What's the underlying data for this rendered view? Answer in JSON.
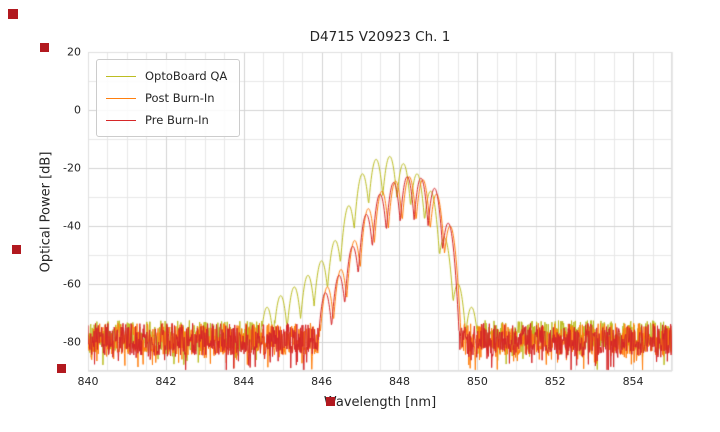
{
  "chart_data": {
    "type": "line",
    "title": "D4715 V20923 Ch. 1",
    "xlabel": "Wavelength [nm]",
    "ylabel": "Optical Power [dB]",
    "xlim": [
      840,
      855
    ],
    "ylim": [
      -90,
      20
    ],
    "xticks": [
      840,
      842,
      844,
      846,
      848,
      850,
      852,
      854
    ],
    "yticks": [
      20,
      0,
      -20,
      -40,
      -60,
      -80
    ],
    "x_minor_step": 0.5,
    "y_minor_step": 10,
    "grid": true,
    "legend_position": "upper left",
    "legend": [
      "OptoBoard QA",
      "Post Burn-In",
      "Pre Burn-In"
    ],
    "series": [
      {
        "name": "OptoBoard QA",
        "color": "#bcbd22",
        "seed": 101,
        "noise_floor": -78,
        "noise_amp": 5.5,
        "spike_prob": 0.18,
        "spike_depth": 7,
        "mode_spacing": 0.36,
        "valley_depth": 55,
        "modes": [
          [
            844.6,
            -68
          ],
          [
            844.95,
            -64
          ],
          [
            845.3,
            -61
          ],
          [
            845.65,
            -57
          ],
          [
            846.0,
            -52
          ],
          [
            846.35,
            -45
          ],
          [
            846.7,
            -33
          ],
          [
            847.05,
            -22
          ],
          [
            847.4,
            -17
          ],
          [
            847.75,
            -16
          ],
          [
            848.1,
            -18.5
          ],
          [
            848.45,
            -22
          ],
          [
            848.8,
            -28
          ],
          [
            849.15,
            -44
          ],
          [
            849.5,
            -60
          ],
          [
            849.85,
            -68
          ]
        ]
      },
      {
        "name": "Post Burn-In",
        "color": "#ff7f0e",
        "seed": 202,
        "noise_floor": -79,
        "noise_amp": 5.5,
        "spike_prob": 0.2,
        "spike_depth": 7,
        "mode_spacing": 0.36,
        "valley_depth": 62,
        "modes": [
          [
            846.15,
            -61
          ],
          [
            846.5,
            -55
          ],
          [
            846.85,
            -45
          ],
          [
            847.2,
            -34
          ],
          [
            847.55,
            -28
          ],
          [
            847.9,
            -24.5
          ],
          [
            848.25,
            -23
          ],
          [
            848.6,
            -24
          ],
          [
            848.95,
            -29
          ],
          [
            849.3,
            -40
          ]
        ]
      },
      {
        "name": "Pre Burn-In",
        "color": "#d62728",
        "seed": 303,
        "noise_floor": -79,
        "noise_amp": 5.5,
        "spike_prob": 0.2,
        "spike_depth": 7,
        "mode_spacing": 0.36,
        "valley_depth": 62,
        "modes": [
          [
            846.1,
            -63
          ],
          [
            846.45,
            -57
          ],
          [
            846.8,
            -47
          ],
          [
            847.15,
            -36
          ],
          [
            847.5,
            -29
          ],
          [
            847.85,
            -25
          ],
          [
            848.2,
            -23
          ],
          [
            848.55,
            -23.5
          ],
          [
            848.9,
            -27
          ],
          [
            849.25,
            -39
          ]
        ]
      }
    ]
  },
  "ui": {
    "marker_color": "#b2191f",
    "grid_major_color": "#d4d4d4",
    "grid_minor_color": "#e7e7e7",
    "background": "#ffffff",
    "text_color": "#262626"
  }
}
